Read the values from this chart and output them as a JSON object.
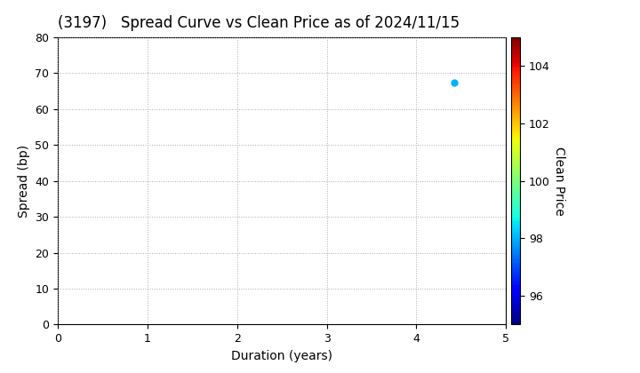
{
  "title": "(3197)   Spread Curve vs Clean Price as of 2024/11/15",
  "xlabel": "Duration (years)",
  "ylabel": "Spread (bp)",
  "colorbar_label": "Clean Price",
  "xlim": [
    0,
    5
  ],
  "ylim": [
    0,
    80
  ],
  "xticks": [
    0,
    1,
    2,
    3,
    4,
    5
  ],
  "yticks": [
    0,
    10,
    20,
    30,
    40,
    50,
    60,
    70,
    80
  ],
  "colorbar_ticks": [
    96,
    98,
    100,
    102,
    104
  ],
  "colorbar_vmin": 95,
  "colorbar_vmax": 105,
  "data_points": [
    {
      "duration": 4.42,
      "spread": 67.5,
      "clean_price": 98.0
    }
  ],
  "grid_color": "#999999",
  "background_color": "#ffffff",
  "title_fontsize": 12,
  "axis_label_fontsize": 10,
  "tick_fontsize": 9,
  "colorbar_tick_fontsize": 9,
  "marker_size": 25
}
